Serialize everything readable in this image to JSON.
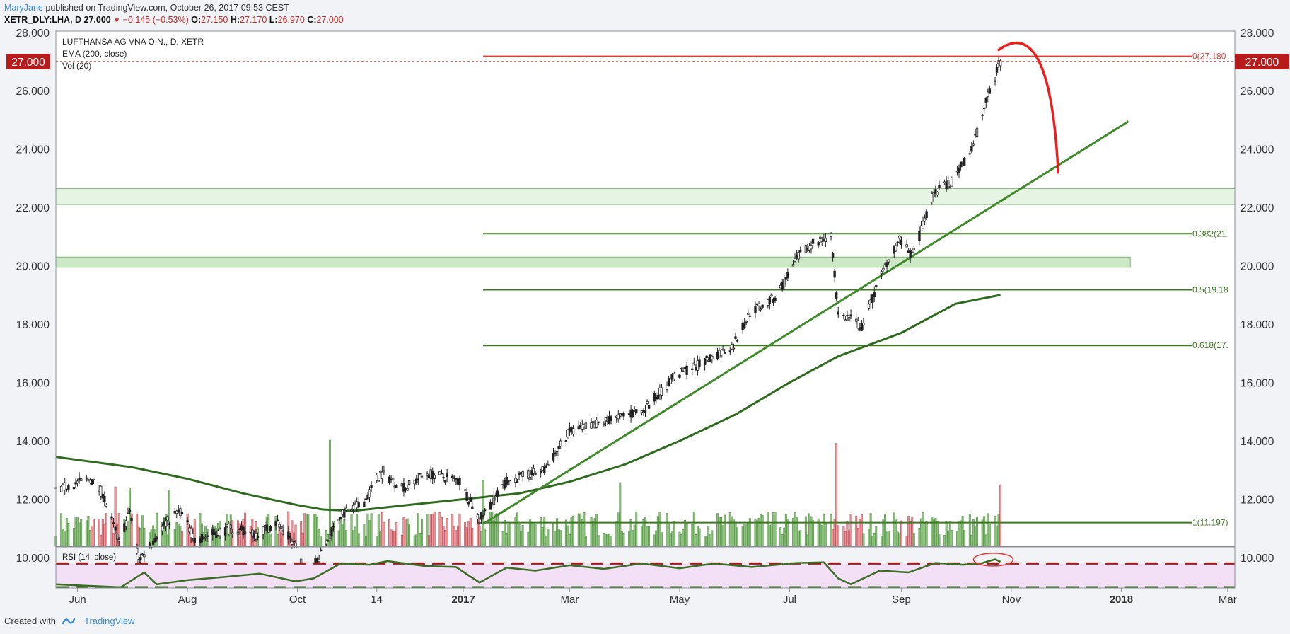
{
  "header": {
    "author": "MaryJane",
    "published_text": " published on TradingView.com, October 26, 2017 09:53 CEST",
    "symbol": "XETR_DLY:LHA, D",
    "last": "27.000",
    "change": "−0.145 (−0.53%)",
    "ohlc": {
      "o_label": "O:",
      "o": "27.150",
      "h_label": "H:",
      "h": "27.170",
      "l_label": "L:",
      "l": "26.970",
      "c_label": "C:",
      "c": "27.000"
    }
  },
  "legend": {
    "title": "LUFTHANSA AG VNA O.N., D, XETR",
    "ema": "EMA (200, close)",
    "vol": "Vol (20)"
  },
  "footer": {
    "created_with": "Created with",
    "brand": "TradingView"
  },
  "colors": {
    "up": "#4a9e47",
    "down": "#c0393b",
    "ema": "#2e6b1f",
    "fib": "#3b7a1f",
    "resistance": "#e53935",
    "zone_fill": "#c8e6c0",
    "rsi_band": "#f3e0f7",
    "price_tag": "#b71c1c"
  },
  "chart_data": [
    {
      "type": "candlestick",
      "title": "LUFTHANSA AG VNA O.N., D, XETR",
      "ylim": [
        8.0,
        28.0
      ],
      "y_ticks": [
        "28.000",
        "26.000",
        "24.000",
        "22.000",
        "20.000",
        "18.000",
        "16.000",
        "14.000",
        "12.000",
        "10.000"
      ],
      "y_tick_values": [
        28,
        26,
        24,
        22,
        20,
        18,
        16,
        14,
        12,
        10
      ],
      "x_ticks": [
        "Jun",
        "Aug",
        "Oct",
        "14",
        "2017",
        "Mar",
        "May",
        "Jul",
        "Sep",
        "Nov",
        "2018",
        "Mar"
      ],
      "x_tick_dates": [
        "2016-06-01",
        "2016-08-01",
        "2016-10-01",
        "2016-11-14",
        "2017-01-01",
        "2017-03-01",
        "2017-05-01",
        "2017-07-01",
        "2017-09-01",
        "2017-11-01",
        "2018-01-01",
        "2018-03-01"
      ],
      "bold_ticks": [
        "2017",
        "2018"
      ],
      "x_range": [
        "2016-05-20",
        "2018-03-05"
      ],
      "last_date": "2017-10-26",
      "price_path": [
        [
          "2016-05-20",
          12.3
        ],
        [
          "2016-06-08",
          12.7
        ],
        [
          "2016-06-15",
          12.2
        ],
        [
          "2016-06-24",
          10.5
        ],
        [
          "2016-06-30",
          11.6
        ],
        [
          "2016-07-05",
          9.9
        ],
        [
          "2016-07-20",
          11.2
        ],
        [
          "2016-07-28",
          11.6
        ],
        [
          "2016-08-05",
          10.6
        ],
        [
          "2016-08-25",
          11.0
        ],
        [
          "2016-09-08",
          10.8
        ],
        [
          "2016-09-20",
          11.2
        ],
        [
          "2016-09-30",
          10.4
        ],
        [
          "2016-10-05",
          9.4
        ],
        [
          "2016-10-14",
          10.1
        ],
        [
          "2016-10-24",
          11.4
        ],
        [
          "2016-11-07",
          11.9
        ],
        [
          "2016-11-16",
          12.9
        ],
        [
          "2016-11-30",
          12.4
        ],
        [
          "2016-12-12",
          12.9
        ],
        [
          "2016-12-30",
          12.6
        ],
        [
          "2017-01-10",
          11.3
        ],
        [
          "2017-01-25",
          12.6
        ],
        [
          "2017-02-15",
          13.0
        ],
        [
          "2017-03-01",
          14.3
        ],
        [
          "2017-03-22",
          14.7
        ],
        [
          "2017-04-10",
          15.0
        ],
        [
          "2017-04-28",
          16.2
        ],
        [
          "2017-05-18",
          16.8
        ],
        [
          "2017-05-31",
          17.3
        ],
        [
          "2017-06-09",
          18.4
        ],
        [
          "2017-06-23",
          18.9
        ],
        [
          "2017-07-06",
          20.3
        ],
        [
          "2017-07-14",
          20.8
        ],
        [
          "2017-07-24",
          21.0
        ],
        [
          "2017-07-28",
          18.3
        ],
        [
          "2017-08-04",
          18.2
        ],
        [
          "2017-08-10",
          17.9
        ],
        [
          "2017-08-23",
          20.0
        ],
        [
          "2017-08-31",
          20.9
        ],
        [
          "2017-09-07",
          20.3
        ],
        [
          "2017-09-19",
          22.5
        ],
        [
          "2017-09-29",
          22.9
        ],
        [
          "2017-10-10",
          24.0
        ],
        [
          "2017-10-19",
          25.8
        ],
        [
          "2017-10-23",
          26.3
        ],
        [
          "2017-10-25",
          27.1
        ],
        [
          "2017-10-26",
          27.0
        ]
      ],
      "ema200": [
        [
          "2016-05-20",
          13.45
        ],
        [
          "2016-07-01",
          13.1
        ],
        [
          "2016-08-01",
          12.7
        ],
        [
          "2016-09-01",
          12.2
        ],
        [
          "2016-10-01",
          11.8
        ],
        [
          "2016-10-15",
          11.65
        ],
        [
          "2016-11-01",
          11.6
        ],
        [
          "2016-12-01",
          11.8
        ],
        [
          "2017-01-01",
          12.0
        ],
        [
          "2017-02-01",
          12.2
        ],
        [
          "2017-03-01",
          12.6
        ],
        [
          "2017-04-01",
          13.2
        ],
        [
          "2017-05-01",
          14.0
        ],
        [
          "2017-06-01",
          14.9
        ],
        [
          "2017-07-01",
          16.0
        ],
        [
          "2017-07-28",
          16.9
        ],
        [
          "2017-09-01",
          17.7
        ],
        [
          "2017-10-01",
          18.7
        ],
        [
          "2017-10-26",
          19.0
        ]
      ],
      "volume_spikes": [
        [
          "2016-10-19",
          1.0
        ],
        [
          "2017-07-27",
          0.97
        ],
        [
          "2017-01-12",
          0.62
        ],
        [
          "2016-06-30",
          0.55
        ],
        [
          "2016-07-22",
          0.53
        ],
        [
          "2016-06-22",
          0.56
        ],
        [
          "2017-10-26",
          0.58
        ],
        [
          "2017-03-29",
          0.6
        ]
      ],
      "fibonacci": [
        {
          "label": "0(27.180",
          "value": 27.18,
          "color": "#e53935"
        },
        {
          "label": "0.382(21.",
          "value": 21.1,
          "color": "#3b7a1f"
        },
        {
          "label": "0.5(19.18",
          "value": 19.18,
          "color": "#3b7a1f"
        },
        {
          "label": "0.618(17.",
          "value": 17.27,
          "color": "#3b7a1f"
        },
        {
          "label": "1(11.197)",
          "value": 11.197,
          "color": "#3b7a1f"
        }
      ],
      "fib_start_date": "2017-01-12",
      "zones": [
        {
          "from": 22.1,
          "to": 22.65,
          "start": "2016-05-20",
          "end": "2018-03-05",
          "alpha": 0.45
        },
        {
          "from": 19.95,
          "to": 20.3,
          "start": "2016-05-20",
          "end": "2018-01-06",
          "alpha": 0.9
        }
      ],
      "trendline": [
        [
          "2017-01-12",
          11.15
        ],
        [
          "2018-01-05",
          24.95
        ]
      ],
      "projection_arc": {
        "start": [
          "2017-10-25",
          27.4
        ],
        "peak": [
          "2017-10-30",
          27.7
        ],
        "end": [
          "2017-11-27",
          23.2
        ]
      },
      "last_price_label": "27.000",
      "last_price": 27.0
    },
    {
      "type": "line",
      "title": "RSI (14, close)",
      "levels": {
        "upper": 70,
        "lower": 30
      },
      "ylim": [
        25,
        85
      ],
      "rsi_path": [
        [
          "2016-05-20",
          35
        ],
        [
          "2016-06-10",
          32
        ],
        [
          "2016-06-25",
          29
        ],
        [
          "2016-07-08",
          55
        ],
        [
          "2016-07-15",
          35
        ],
        [
          "2016-08-01",
          42
        ],
        [
          "2016-08-20",
          47
        ],
        [
          "2016-09-10",
          53
        ],
        [
          "2016-09-30",
          40
        ],
        [
          "2016-10-10",
          45
        ],
        [
          "2016-10-25",
          70
        ],
        [
          "2016-11-10",
          68
        ],
        [
          "2016-11-20",
          74
        ],
        [
          "2016-12-10",
          66
        ],
        [
          "2016-12-28",
          64
        ],
        [
          "2017-01-10",
          38
        ],
        [
          "2017-01-25",
          63
        ],
        [
          "2017-02-10",
          58
        ],
        [
          "2017-03-01",
          67
        ],
        [
          "2017-03-20",
          61
        ],
        [
          "2017-04-10",
          70
        ],
        [
          "2017-05-01",
          62
        ],
        [
          "2017-05-20",
          70
        ],
        [
          "2017-06-10",
          64
        ],
        [
          "2017-07-05",
          71
        ],
        [
          "2017-07-20",
          72
        ],
        [
          "2017-07-28",
          45
        ],
        [
          "2017-08-04",
          35
        ],
        [
          "2017-08-20",
          58
        ],
        [
          "2017-09-05",
          55
        ],
        [
          "2017-09-20",
          71
        ],
        [
          "2017-10-05",
          68
        ],
        [
          "2017-10-15",
          70
        ],
        [
          "2017-10-23",
          77
        ],
        [
          "2017-10-26",
          73
        ]
      ],
      "highlight_ellipse": {
        "center": [
          "2017-10-22",
          73
        ]
      }
    }
  ]
}
